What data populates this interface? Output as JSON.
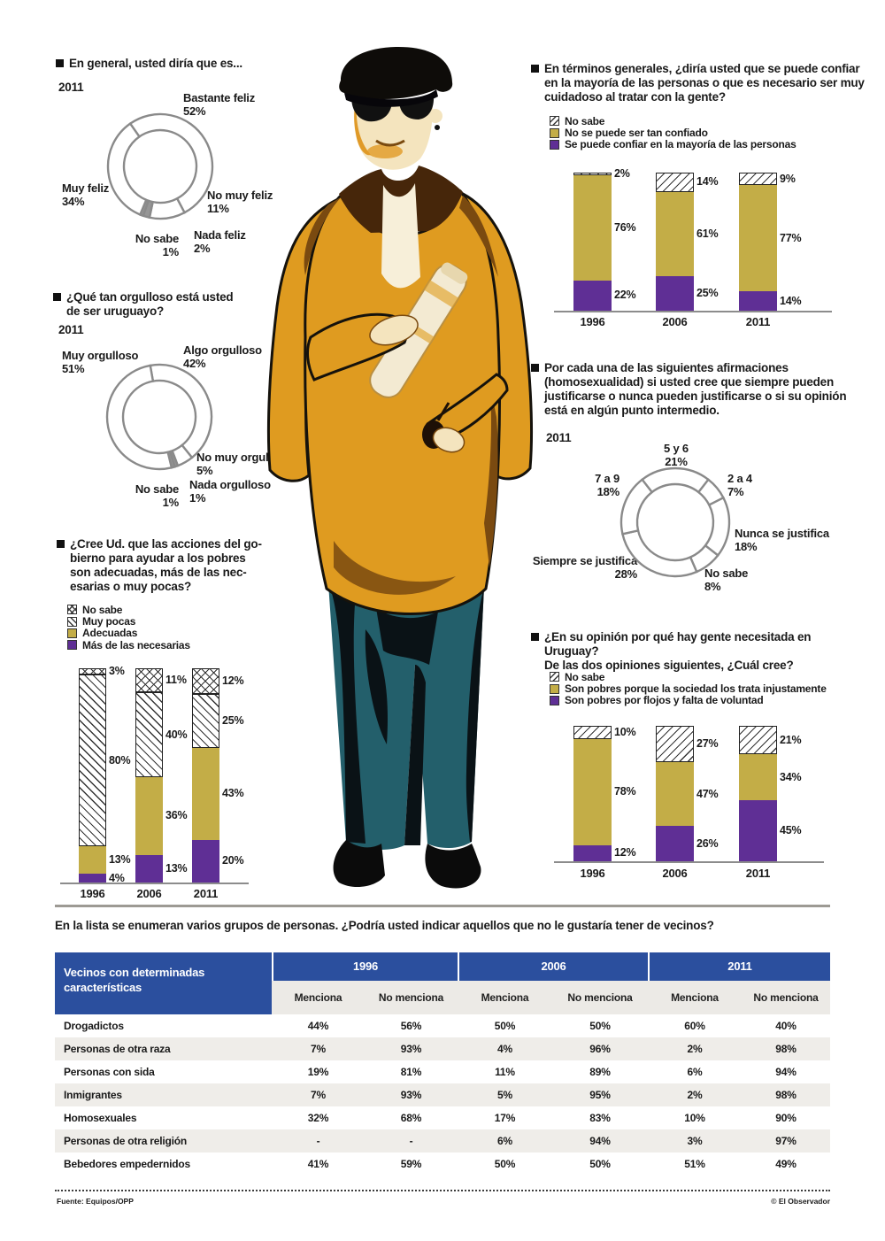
{
  "page": {
    "footer": {
      "source": "Fuente: Equipos/OPP",
      "credit": "© El Observador"
    },
    "colors": {
      "olive": "#C3AD47",
      "purple": "#5F2F95",
      "table_blue": "#2B4F9E",
      "donut_gray": "#8a8a8a"
    }
  },
  "chart_data": [
    {
      "id": "happiness",
      "type": "pie",
      "shape": "donut",
      "title": "En general, usted diría que es...",
      "year": "2011",
      "rotation": -35,
      "slices": [
        {
          "label": "Bastante feliz",
          "value": 52,
          "pct": "52%",
          "fill": "white"
        },
        {
          "label": "No muy feliz",
          "value": 11,
          "pct": "11%",
          "fill": "white"
        },
        {
          "label": "Nada feliz",
          "value": 2,
          "pct": "2%",
          "fill": "gray"
        },
        {
          "label": "No sabe",
          "value": 1,
          "pct": "1%",
          "fill": "gray"
        },
        {
          "label": "Muy feliz",
          "value": 34,
          "pct": "34%",
          "fill": "white"
        }
      ]
    },
    {
      "id": "trust",
      "type": "bar",
      "stacked": true,
      "title": "En términos generales, ¿diría usted que se puede confiar\nen la mayoría de las personas o que es necesario ser  muy\ncuidadoso al tratar con la gente?",
      "categories": [
        "1996",
        "2006",
        "2011"
      ],
      "series": [
        {
          "name": "No sabe",
          "swatch": "hatch-diag",
          "values": [
            2,
            14,
            9
          ]
        },
        {
          "name": "No se puede ser tan confiado",
          "swatch": "#C3AD47",
          "values": [
            76,
            61,
            77
          ]
        },
        {
          "name": "Se puede confiar en la mayoría de las personas",
          "swatch": "#5F2F95",
          "values": [
            22,
            25,
            14
          ]
        }
      ],
      "unit": "%",
      "ylim": [
        0,
        100
      ],
      "legend_position": "top"
    },
    {
      "id": "pride",
      "type": "pie",
      "shape": "donut",
      "title": "¿Qué tan orgulloso está usted\nde ser uruguayo?",
      "year": "2011",
      "rotation": -10,
      "slices": [
        {
          "label": "Algo orgulloso",
          "value": 42,
          "pct": "42%",
          "fill": "white"
        },
        {
          "label": "No muy orgulloso",
          "value": 5,
          "pct": "5%",
          "fill": "white"
        },
        {
          "label": "Nada orgulloso",
          "value": 1,
          "pct": "1%",
          "fill": "gray"
        },
        {
          "label": "No sabe",
          "value": 1,
          "pct": "1%",
          "fill": "gray"
        },
        {
          "label": "Muy orgulloso",
          "value": 51,
          "pct": "51%",
          "fill": "white"
        }
      ]
    },
    {
      "id": "justify",
      "type": "pie",
      "shape": "donut",
      "title": "Por cada una de las siguientes afirmaciones\n(homosexualidad) si usted cree que siempre pueden\njustificarse o nunca pueden justificarse o si su opinión\nestá en algún punto intermedio.",
      "year": "2011",
      "rotation": -37.8,
      "slices": [
        {
          "label": "5 y 6",
          "value": 21,
          "pct": "21%",
          "fill": "white"
        },
        {
          "label": "2 a 4",
          "value": 7,
          "pct": "7%",
          "fill": "white"
        },
        {
          "label": "Nunca se justifica",
          "value": 18,
          "pct": "18%",
          "fill": "white"
        },
        {
          "label": "No sabe",
          "value": 8,
          "pct": "8%",
          "fill": "white"
        },
        {
          "label": "Siempre se justifica",
          "value": 28,
          "pct": "28%",
          "fill": "white"
        },
        {
          "label": "7 a 9",
          "value": 18,
          "pct": "18%",
          "fill": "white"
        }
      ]
    },
    {
      "id": "government",
      "type": "bar",
      "stacked": true,
      "title": "¿Cree Ud. que las acciones del go-\nbierno para ayudar a los pobres\nson adecuadas, más de las nec-\nesarias o muy pocas?",
      "categories": [
        "1996",
        "2006",
        "2011"
      ],
      "series": [
        {
          "name": "No sabe",
          "swatch": "hatch-cross",
          "values": [
            3,
            11,
            12
          ]
        },
        {
          "name": "Muy pocas",
          "swatch": "hatch-diag2",
          "values": [
            80,
            40,
            25
          ]
        },
        {
          "name": "Adecuadas",
          "swatch": "#C3AD47",
          "values": [
            13,
            36,
            43
          ]
        },
        {
          "name": "Más de las necesarias",
          "swatch": "#5F2F95",
          "values": [
            4,
            13,
            20
          ]
        }
      ],
      "unit": "%",
      "ylim": [
        0,
        100
      ],
      "legend_position": "top"
    },
    {
      "id": "poverty",
      "type": "bar",
      "stacked": true,
      "title": "¿En su opinión por qué hay gente necesitada en Uruguay?\nDe las dos opiniones siguientes, ¿Cuál cree?",
      "categories": [
        "1996",
        "2006",
        "2011"
      ],
      "series": [
        {
          "name": "No sabe",
          "swatch": "hatch-diag",
          "values": [
            10,
            27,
            21
          ]
        },
        {
          "name": "Son pobres porque la sociedad los trata injustamente",
          "swatch": "#C3AD47",
          "values": [
            78,
            47,
            34
          ]
        },
        {
          "name": "Son pobres por flojos y falta de voluntad",
          "swatch": "#5F2F95",
          "values": [
            12,
            26,
            45
          ]
        }
      ],
      "unit": "%",
      "ylim": [
        0,
        100
      ],
      "legend_position": "top"
    },
    {
      "id": "neighbors",
      "type": "table",
      "title": "En la lista se enumeran varios grupos de personas. ¿Podría usted indicar aquellos que no le gustaría tener de vecinos?",
      "row_header": "Vecinos con  determinadas\ncaracterísticas",
      "year_groups": [
        "1996",
        "2006",
        "2011"
      ],
      "sub_columns": [
        "Menciona",
        "No menciona"
      ],
      "rows": [
        {
          "label": "Drogadictos",
          "values": [
            "44%",
            "56%",
            "50%",
            "50%",
            "60%",
            "40%"
          ]
        },
        {
          "label": "Personas de otra raza",
          "values": [
            "7%",
            "93%",
            "4%",
            "96%",
            "2%",
            "98%"
          ]
        },
        {
          "label": "Personas con sida",
          "values": [
            "19%",
            "81%",
            "11%",
            "89%",
            "6%",
            "94%"
          ]
        },
        {
          "label": "Inmigrantes",
          "values": [
            "7%",
            "93%",
            "5%",
            "95%",
            "2%",
            "98%"
          ]
        },
        {
          "label": "Homosexuales",
          "values": [
            "32%",
            "68%",
            "17%",
            "83%",
            "10%",
            "90%"
          ]
        },
        {
          "label": "Personas de otra religión",
          "values": [
            "-",
            "-",
            "6%",
            "94%",
            "3%",
            "97%"
          ]
        },
        {
          "label": "Bebedores empedernidos",
          "values": [
            "41%",
            "59%",
            "50%",
            "50%",
            "51%",
            "49%"
          ]
        }
      ]
    }
  ]
}
